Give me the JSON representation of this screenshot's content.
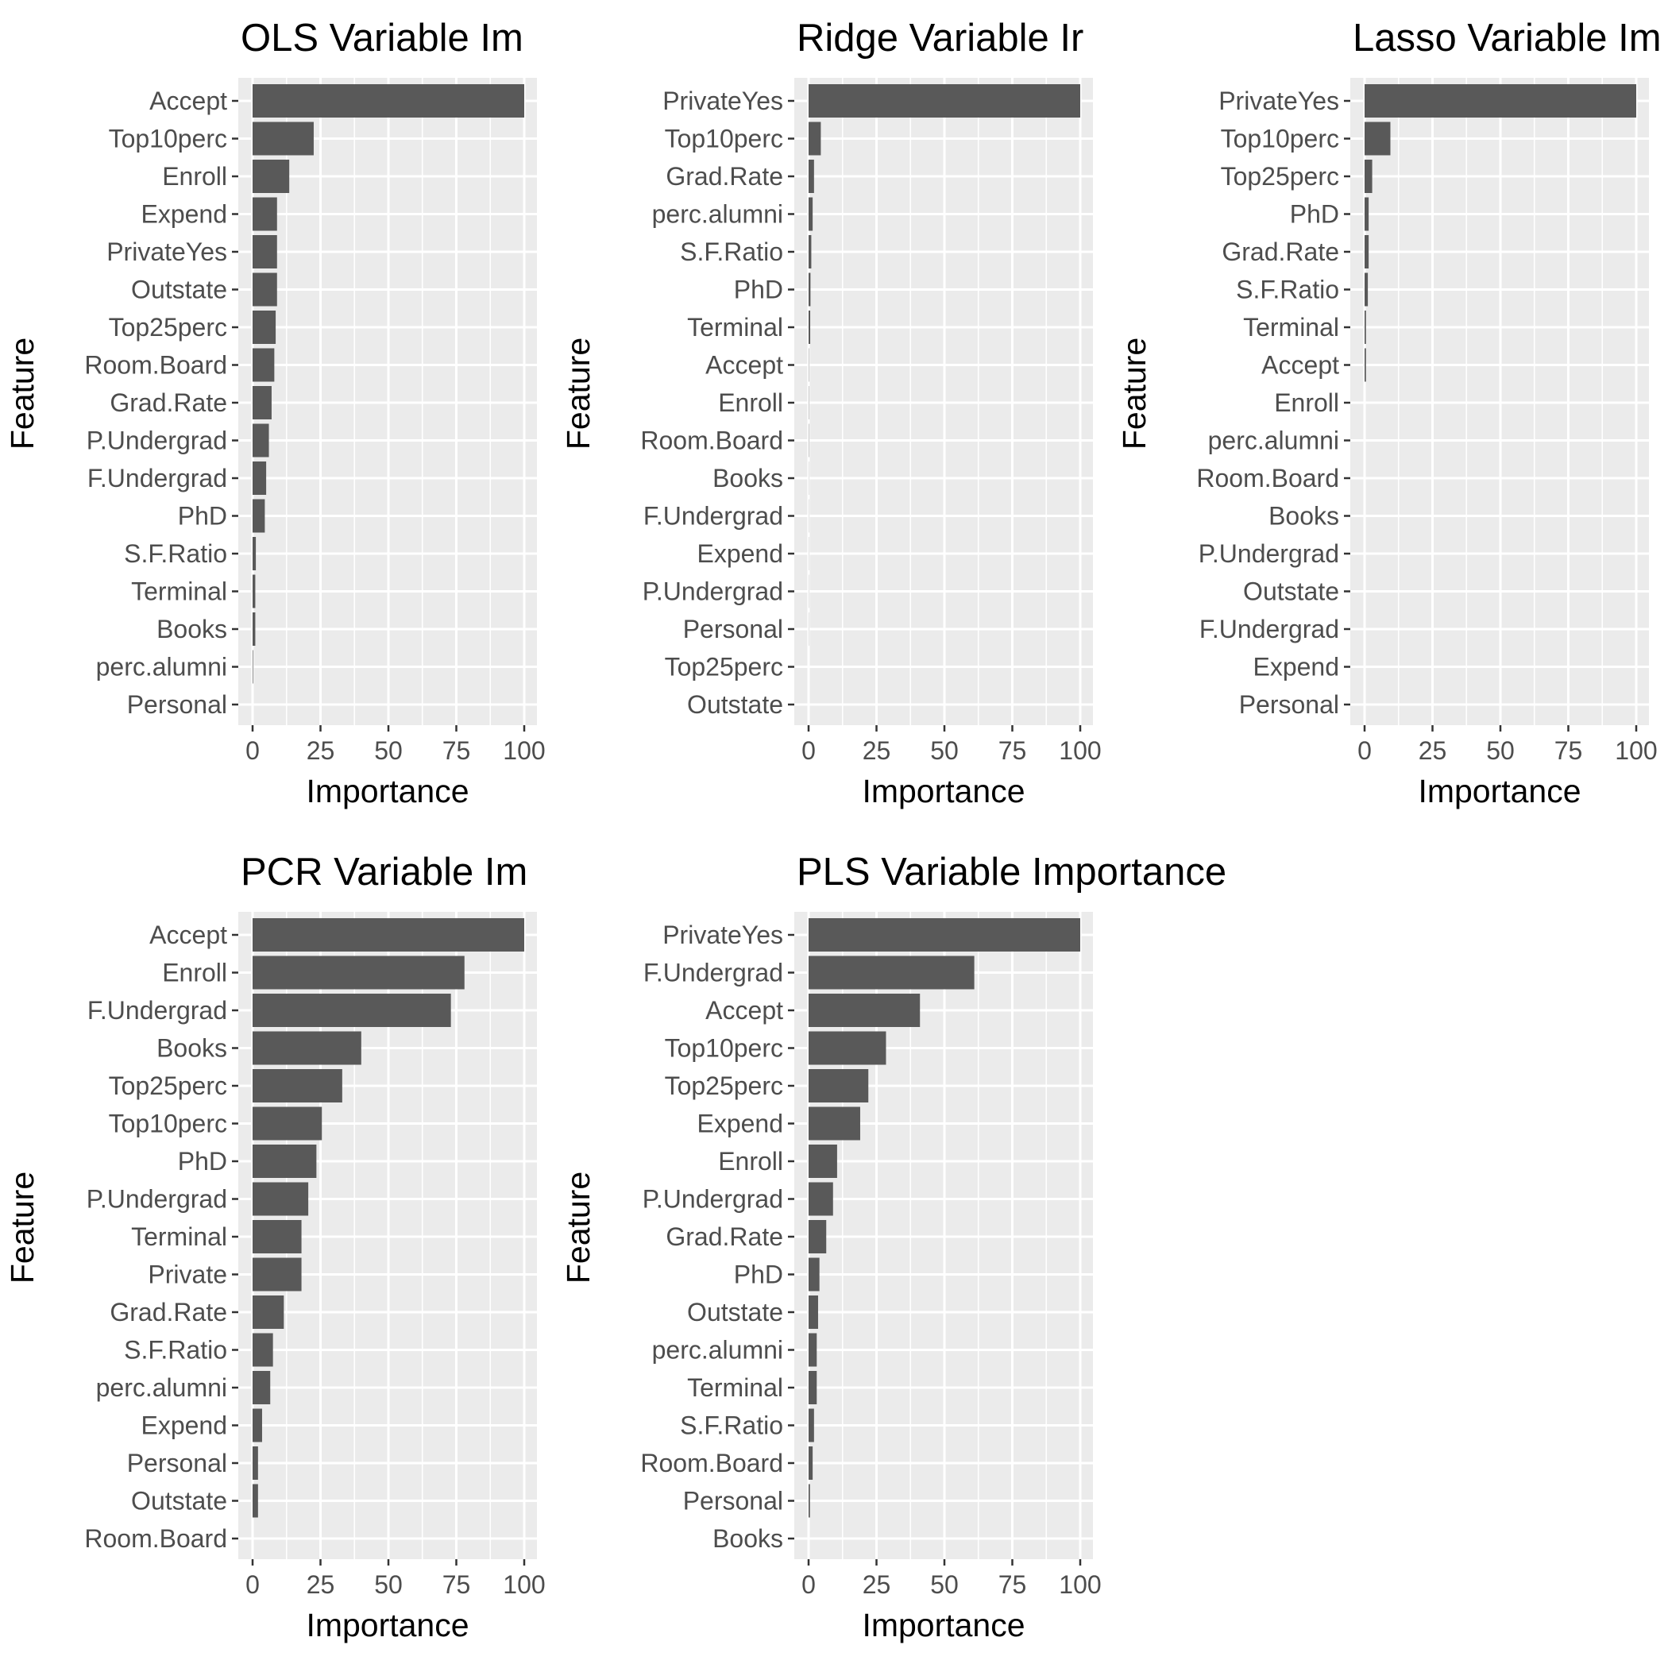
{
  "chart_data": [
    {
      "type": "bar",
      "orientation": "horizontal",
      "title": "OLS Variable Im",
      "xlabel": "Importance",
      "ylabel": "Feature",
      "xlim": [
        0,
        100
      ],
      "xticks": [
        "0",
        "25",
        "50",
        "75",
        "100"
      ],
      "categories": [
        "Accept",
        "Top10perc",
        "Enroll",
        "Expend",
        "PrivateYes",
        "Outstate",
        "Top25perc",
        "Room.Board",
        "Grad.Rate",
        "P.Undergrad",
        "F.Undergrad",
        "PhD",
        "S.F.Ratio",
        "Terminal",
        "Books",
        "perc.alumni",
        "Personal"
      ],
      "values": [
        100,
        22.5,
        13.5,
        9.0,
        9.0,
        9.0,
        8.5,
        8.0,
        7.0,
        6.0,
        5.0,
        4.5,
        1.2,
        1.0,
        1.0,
        0.2,
        0.0
      ]
    },
    {
      "type": "bar",
      "orientation": "horizontal",
      "title": "Ridge Variable Ir",
      "xlabel": "Importance",
      "ylabel": "Feature",
      "xlim": [
        0,
        100
      ],
      "xticks": [
        "0",
        "25",
        "50",
        "75",
        "100"
      ],
      "categories": [
        "PrivateYes",
        "Top10perc",
        "Grad.Rate",
        "perc.alumni",
        "S.F.Ratio",
        "PhD",
        "Terminal",
        "Accept",
        "Enroll",
        "Room.Board",
        "Books",
        "F.Undergrad",
        "Expend",
        "P.Undergrad",
        "Personal",
        "Top25perc",
        "Outstate"
      ],
      "values": [
        100,
        4.5,
        2.0,
        1.5,
        1.0,
        0.7,
        0.6,
        0.1,
        0.1,
        0.1,
        0.05,
        0.05,
        0.05,
        0.05,
        0.05,
        0.0,
        0.0
      ]
    },
    {
      "type": "bar",
      "orientation": "horizontal",
      "title": "Lasso Variable Im",
      "xlabel": "Importance",
      "ylabel": "Feature",
      "xlim": [
        0,
        100
      ],
      "xticks": [
        "0",
        "25",
        "50",
        "75",
        "100"
      ],
      "categories": [
        "PrivateYes",
        "Top10perc",
        "Top25perc",
        "PhD",
        "Grad.Rate",
        "S.F.Ratio",
        "Terminal",
        "Accept",
        "Enroll",
        "perc.alumni",
        "Room.Board",
        "Books",
        "P.Undergrad",
        "Outstate",
        "F.Undergrad",
        "Expend",
        "Personal"
      ],
      "values": [
        100,
        9.5,
        2.8,
        1.5,
        1.5,
        1.2,
        0.5,
        0.5,
        0.0,
        0.0,
        0.0,
        0.0,
        0.0,
        0.0,
        0.0,
        0.0,
        0.0
      ]
    },
    {
      "type": "bar",
      "orientation": "horizontal",
      "title": "PCR Variable Im",
      "xlabel": "Importance",
      "ylabel": "Feature",
      "xlim": [
        0,
        100
      ],
      "xticks": [
        "0",
        "25",
        "50",
        "75",
        "100"
      ],
      "categories": [
        "Accept",
        "Enroll",
        "F.Undergrad",
        "Books",
        "Top25perc",
        "Top10perc",
        "PhD",
        "P.Undergrad",
        "Terminal",
        "Private",
        "Grad.Rate",
        "S.F.Ratio",
        "perc.alumni",
        "Expend",
        "Personal",
        "Outstate",
        "Room.Board"
      ],
      "values": [
        100,
        78,
        73,
        40,
        33,
        25.5,
        23.5,
        20.5,
        18,
        18,
        11.5,
        7.5,
        6.5,
        3.5,
        2.0,
        2.0,
        0.0
      ]
    },
    {
      "type": "bar",
      "orientation": "horizontal",
      "title": "PLS Variable Importance",
      "xlabel": "Importance",
      "ylabel": "Feature",
      "xlim": [
        0,
        100
      ],
      "xticks": [
        "0",
        "25",
        "50",
        "75",
        "100"
      ],
      "categories": [
        "PrivateYes",
        "F.Undergrad",
        "Accept",
        "Top10perc",
        "Top25perc",
        "Expend",
        "Enroll",
        "P.Undergrad",
        "Grad.Rate",
        "PhD",
        "Outstate",
        "perc.alumni",
        "Terminal",
        "S.F.Ratio",
        "Room.Board",
        "Personal",
        "Books"
      ],
      "values": [
        100,
        61,
        41,
        28.5,
        22,
        19,
        10.5,
        9,
        6.5,
        4,
        3.5,
        3,
        3,
        2,
        1.5,
        0.5,
        0.0
      ]
    }
  ],
  "colors": {
    "panel_background": "#ebebeb",
    "grid_major": "#ffffff",
    "bar_fill": "#595959",
    "axis_text": "#4d4d4d",
    "title_text": "#000000"
  }
}
